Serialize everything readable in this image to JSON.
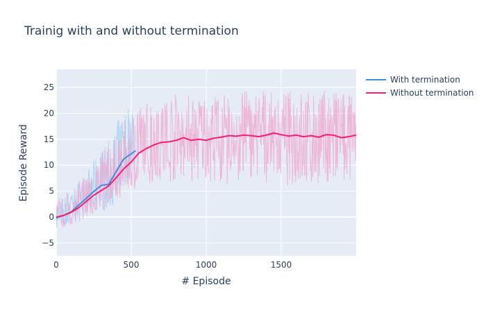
{
  "chart_data": {
    "type": "line",
    "title": "Trainig with and without termination",
    "xlabel": "# Episode",
    "ylabel": "Episode Reward",
    "xlim": [
      0,
      2000
    ],
    "ylim": [
      -7.5,
      28.5
    ],
    "x_ticks": [
      0,
      500,
      1000,
      1500
    ],
    "y_ticks": [
      -5,
      0,
      5,
      10,
      15,
      20,
      25
    ],
    "x_tick_labels": [
      "0",
      "500",
      "1000",
      "1500"
    ],
    "y_tick_labels": [
      "−5",
      "0",
      "5",
      "10",
      "15",
      "20",
      "25"
    ],
    "grid": true,
    "legend_position": "top-right",
    "series": [
      {
        "name": "With termination",
        "color": "#3d8fdc",
        "raw_color": "#a6d3f2",
        "x": [
          0,
          50,
          100,
          150,
          200,
          250,
          300,
          350,
          400,
          450,
          500,
          530
        ],
        "smoothed": [
          -0.2,
          0.3,
          1.0,
          2.3,
          3.6,
          4.9,
          6.1,
          6.3,
          8.8,
          11.2,
          12.2,
          12.8
        ],
        "raw_band_low": [
          -2.5,
          -2.0,
          -1.5,
          -1.0,
          0.0,
          0.5,
          1.0,
          1.5,
          3.0,
          5.5,
          7.0,
          8.0
        ],
        "raw_band_high": [
          3.0,
          4.0,
          5.5,
          7.0,
          8.5,
          11.0,
          13.0,
          15.0,
          18.0,
          21.0,
          22.5,
          20.0
        ]
      },
      {
        "name": "Without termination",
        "color": "#ff1a6e",
        "raw_color": "#f0a6cf",
        "x": [
          0,
          50,
          100,
          150,
          200,
          250,
          300,
          350,
          400,
          450,
          500,
          550,
          600,
          650,
          700,
          750,
          800,
          850,
          900,
          950,
          1000,
          1050,
          1100,
          1150,
          1200,
          1250,
          1300,
          1350,
          1400,
          1450,
          1500,
          1550,
          1600,
          1650,
          1700,
          1750,
          1800,
          1850,
          1900,
          1950,
          2000
        ],
        "smoothed": [
          0.0,
          0.3,
          0.9,
          1.8,
          3.0,
          4.2,
          5.1,
          6.0,
          7.6,
          9.3,
          10.6,
          12.3,
          13.2,
          13.9,
          14.4,
          14.5,
          14.8,
          15.3,
          14.8,
          15.0,
          14.8,
          15.2,
          15.4,
          15.7,
          15.6,
          15.8,
          15.7,
          15.5,
          15.8,
          16.2,
          15.9,
          15.6,
          15.8,
          15.5,
          15.7,
          15.4,
          15.9,
          15.8,
          15.3,
          15.5,
          15.8
        ],
        "raw_band_low": [
          -3.0,
          -2.0,
          -1.5,
          -1.0,
          0.0,
          0.5,
          1.0,
          2.0,
          3.0,
          4.0,
          5.0,
          6.0,
          6.5,
          6.5,
          7.0,
          6.5,
          7.0,
          6.0,
          6.5,
          6.5,
          6.0,
          7.0,
          6.5,
          6.0,
          6.5,
          7.0,
          6.5,
          6.0,
          6.0,
          6.5,
          6.5,
          6.0,
          6.5,
          6.0,
          6.0,
          6.5,
          6.5,
          6.0,
          6.0,
          6.5,
          6.5
        ],
        "raw_band_high": [
          4.0,
          4.0,
          5.5,
          7.0,
          8.5,
          10.5,
          12.5,
          14.0,
          16.0,
          18.5,
          20.0,
          21.5,
          22.5,
          23.0,
          23.5,
          23.5,
          24.0,
          23.5,
          24.0,
          23.5,
          24.5,
          24.0,
          23.5,
          24.0,
          24.0,
          24.5,
          24.0,
          25.0,
          24.5,
          24.0,
          24.0,
          24.5,
          24.0,
          24.5,
          24.0,
          24.5,
          24.5,
          24.0,
          24.5,
          24.0,
          24.5
        ]
      }
    ]
  }
}
